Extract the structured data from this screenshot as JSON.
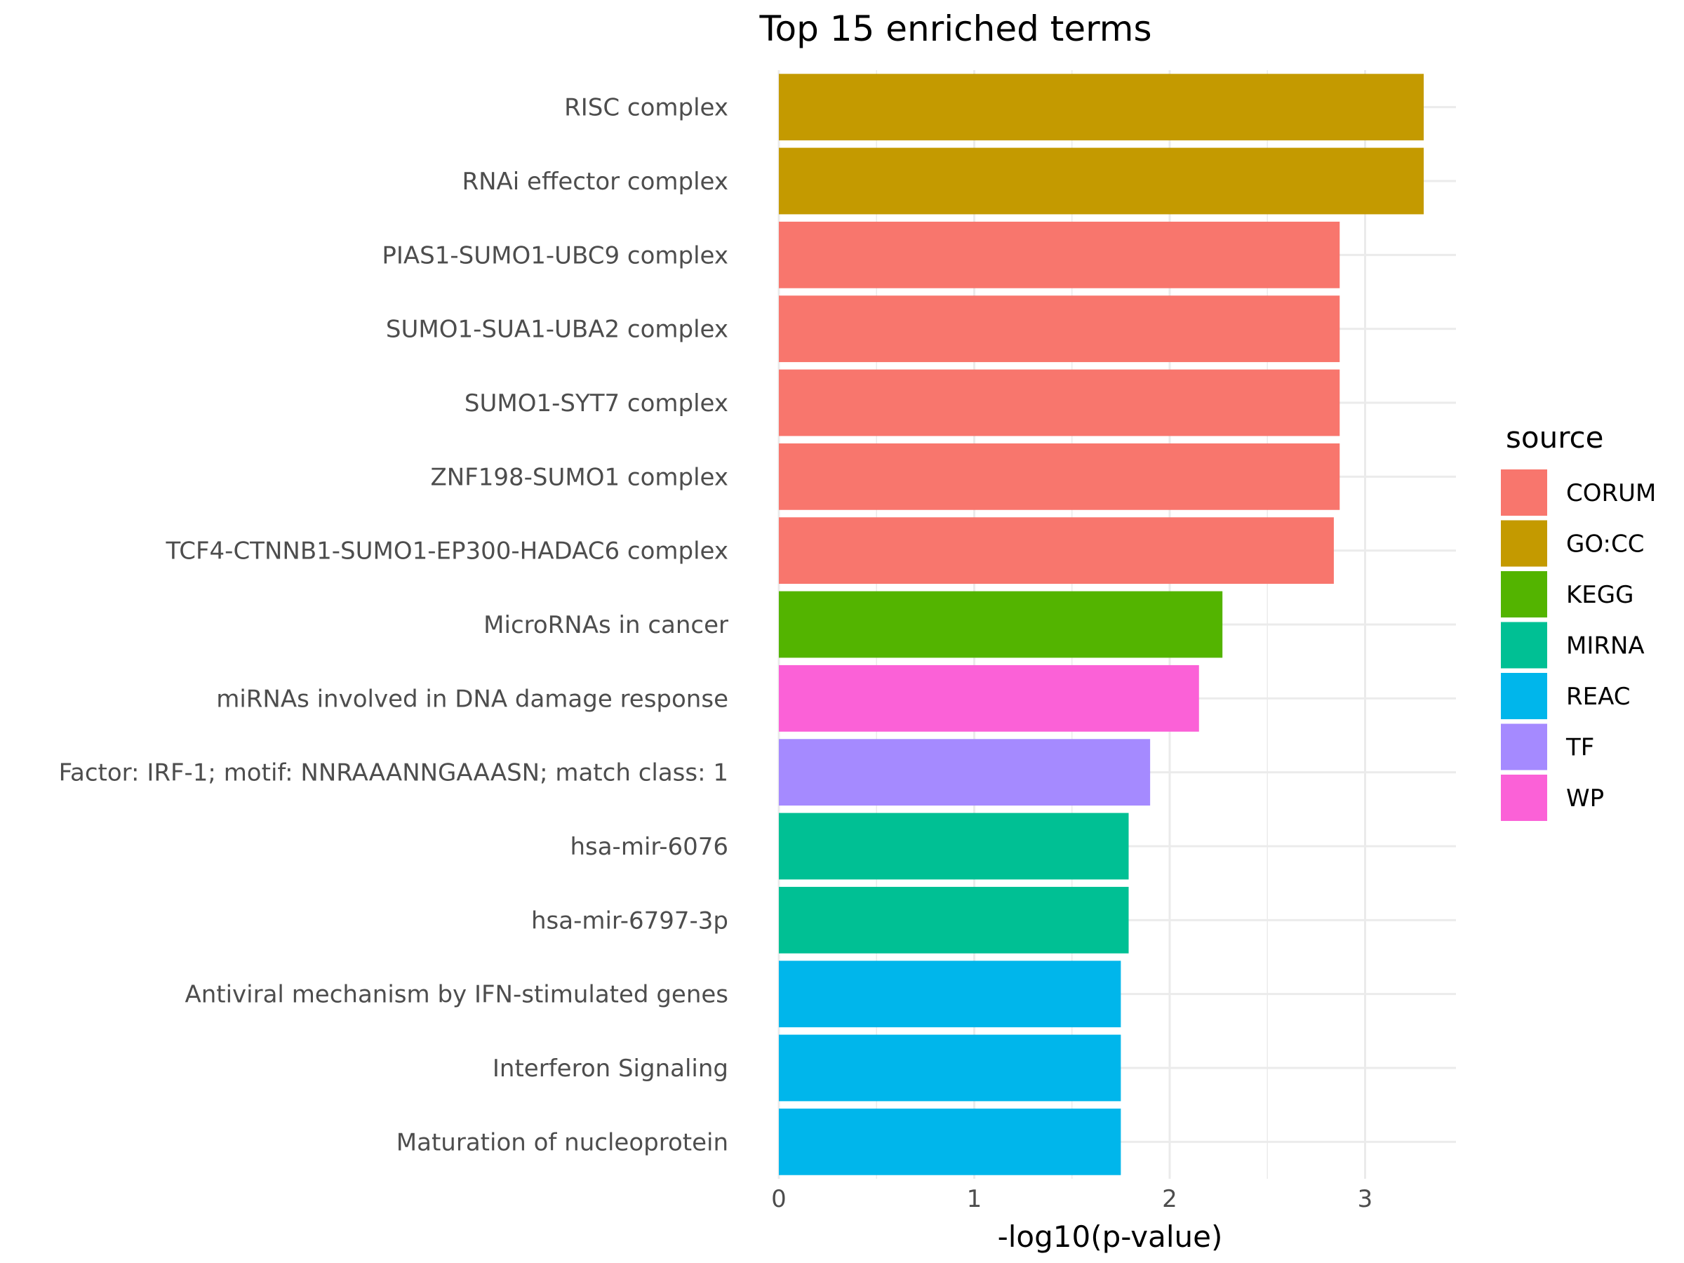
{
  "chart_data": {
    "type": "bar",
    "orientation": "horizontal",
    "title": "Top 15 enriched terms",
    "xlabel": "-log10(p-value)",
    "ylabel": "",
    "xlim": [
      0,
      3.45
    ],
    "xticks": [
      "0",
      "1",
      "2",
      "3"
    ],
    "grid": true,
    "legend": {
      "title": "source",
      "position": "right"
    },
    "categories": [
      "RISC complex",
      "RNAi effector complex",
      "PIAS1-SUMO1-UBC9 complex",
      "SUMO1-SUA1-UBA2 complex",
      "SUMO1-SYT7 complex",
      "ZNF198-SUMO1 complex",
      "TCF4-CTNNB1-SUMO1-EP300-HADAC6 complex",
      "MicroRNAs in cancer",
      "miRNAs involved in DNA damage response",
      "Factor: IRF-1; motif: NNRAAANNGAAASN; match class: 1",
      "hsa-mir-6076",
      "hsa-mir-6797-3p",
      "Antiviral mechanism by IFN-stimulated genes",
      "Interferon Signaling",
      "Maturation of nucleoprotein"
    ],
    "values": [
      3.3,
      3.3,
      2.87,
      2.87,
      2.87,
      2.87,
      2.84,
      2.27,
      2.15,
      1.9,
      1.79,
      1.79,
      1.75,
      1.75,
      1.75
    ],
    "sources": [
      "GO:CC",
      "GO:CC",
      "CORUM",
      "CORUM",
      "CORUM",
      "CORUM",
      "CORUM",
      "KEGG",
      "WP",
      "TF",
      "MIRNA",
      "MIRNA",
      "REAC",
      "REAC",
      "REAC"
    ],
    "source_colors": {
      "CORUM": "#F8766D",
      "GO:CC": "#C49A00",
      "KEGG": "#53B400",
      "MIRNA": "#00C094",
      "REAC": "#00B6EB",
      "TF": "#A58AFF",
      "WP": "#FB61D7"
    },
    "legend_entries": [
      "CORUM",
      "GO:CC",
      "KEGG",
      "MIRNA",
      "REAC",
      "TF",
      "WP"
    ]
  }
}
